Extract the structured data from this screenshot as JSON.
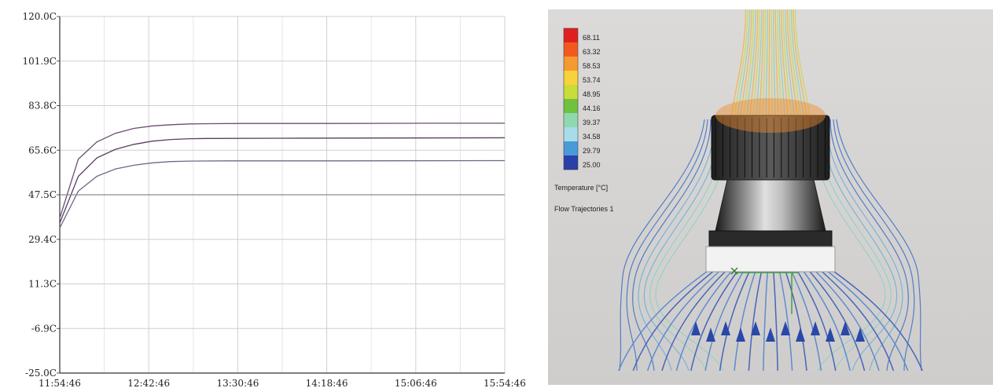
{
  "chart_data": [
    {
      "type": "line",
      "title": "",
      "xlabel": "",
      "ylabel": "",
      "x_ticks": [
        "11:54:46",
        "12:42:46",
        "13:30:46",
        "14:18:46",
        "15:06:46",
        "15:54:46"
      ],
      "y_ticks": [
        "120.0C",
        "101.9C",
        "83.8C",
        "65.6C",
        "47.5C",
        "29.4C",
        "11.3C",
        "-6.9C",
        "-25.0C"
      ],
      "xlim": [
        0,
        240
      ],
      "ylim": [
        -25.0,
        120.0
      ],
      "grid": true,
      "series": [
        {
          "values": [
            [
              0,
              38
            ],
            [
              10,
              62
            ],
            [
              20,
              69
            ],
            [
              30,
              72.5
            ],
            [
              40,
              74.5
            ],
            [
              50,
              75.5
            ],
            [
              60,
              76
            ],
            [
              70,
              76.3
            ],
            [
              80,
              76.4
            ],
            [
              100,
              76.5
            ],
            [
              150,
              76.5
            ],
            [
              200,
              76.6
            ],
            [
              240,
              76.6
            ]
          ],
          "color": "#6a4e6e"
        },
        {
          "values": [
            [
              0,
              36
            ],
            [
              10,
              55
            ],
            [
              20,
              62.5
            ],
            [
              30,
              66
            ],
            [
              40,
              68
            ],
            [
              50,
              69.3
            ],
            [
              60,
              70
            ],
            [
              70,
              70.3
            ],
            [
              80,
              70.4
            ],
            [
              120,
              70.5
            ],
            [
              180,
              70.6
            ],
            [
              240,
              70.7
            ]
          ],
          "color": "#5a3e5e"
        },
        {
          "values": [
            [
              0,
              34
            ],
            [
              10,
              49
            ],
            [
              20,
              55
            ],
            [
              30,
              58
            ],
            [
              40,
              59.5
            ],
            [
              50,
              60.5
            ],
            [
              60,
              61
            ],
            [
              70,
              61.2
            ],
            [
              90,
              61.3
            ],
            [
              150,
              61.3
            ],
            [
              240,
              61.4
            ]
          ],
          "color": "#6a6a8a"
        },
        {
          "values": [
            [
              0,
              47.5
            ],
            [
              240,
              47.5
            ]
          ],
          "color": "#8a8a9a"
        }
      ]
    }
  ],
  "simulation": {
    "legend": {
      "values": [
        "68.11",
        "63.32",
        "58.53",
        "53.74",
        "48.95",
        "44.16",
        "39.37",
        "34.58",
        "29.79",
        "25.00"
      ],
      "colors": [
        "#e02020",
        "#f05a20",
        "#f59a30",
        "#f7d23a",
        "#c8dc3a",
        "#6ec23e",
        "#8ed8b0",
        "#a8dce8",
        "#4a9ad8",
        "#2a3fa8"
      ],
      "title": "Temperature [°C]",
      "subtitle": "Flow Trajectories 1"
    }
  }
}
